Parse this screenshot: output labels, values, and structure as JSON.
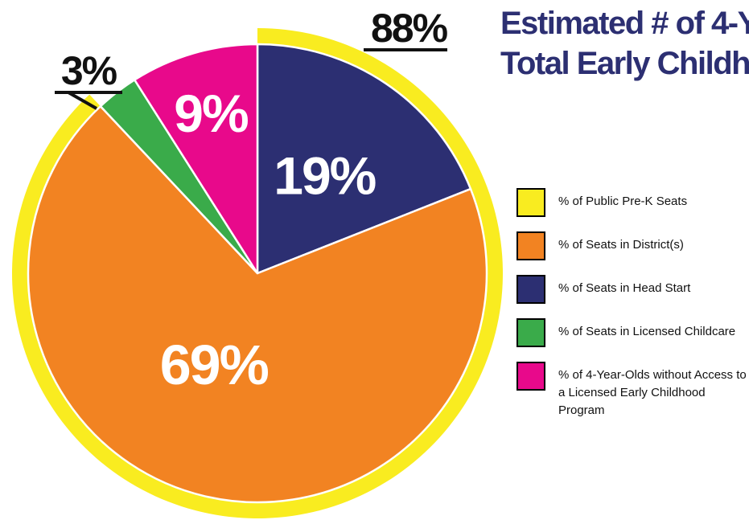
{
  "title_lines": [
    "Estimated # of 4-Y",
    "Total Early Childh"
  ],
  "chart_data": {
    "type": "pie",
    "outer_ring": {
      "name": "% of Public Pre-K Seats",
      "value": 88,
      "label": "88%",
      "color": "#f9ec20"
    },
    "slices": [
      {
        "name": "% of Seats in Head Start",
        "value": 19,
        "label": "19%",
        "color": "#2c2f72"
      },
      {
        "name": "% of Seats in District(s)",
        "value": 69,
        "label": "69%",
        "color": "#f28322"
      },
      {
        "name": "% of Seats in Licensed Childcare",
        "value": 3,
        "label": "3%",
        "color": "#3aab4a"
      },
      {
        "name": "% of 4-Year-Olds without Access to a Licensed Early Childhood Program",
        "value": 9,
        "label": "9%",
        "color": "#e8098b"
      }
    ]
  },
  "legend": [
    {
      "label": "% of Public Pre-K Seats",
      "color": "#f9ec20"
    },
    {
      "label": "% of Seats in District(s)",
      "color": "#f28322"
    },
    {
      "label": "% of Seats in Head Start",
      "color": "#2c2f72"
    },
    {
      "label": "% of Seats in Licensed Childcare",
      "color": "#3aab4a"
    },
    {
      "label": "% of 4-Year-Olds without Access to a Licensed Early Childhood Program",
      "color": "#e8098b"
    }
  ]
}
